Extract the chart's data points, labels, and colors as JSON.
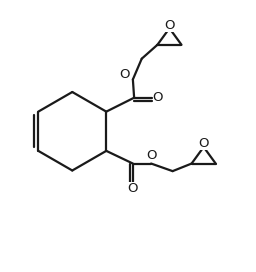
{
  "bg_color": "#ffffff",
  "line_color": "#1a1a1a",
  "line_width": 1.6,
  "figsize": [
    2.56,
    2.72
  ],
  "dpi": 100,
  "xlim": [
    0,
    10
  ],
  "ylim": [
    0,
    10.625
  ]
}
